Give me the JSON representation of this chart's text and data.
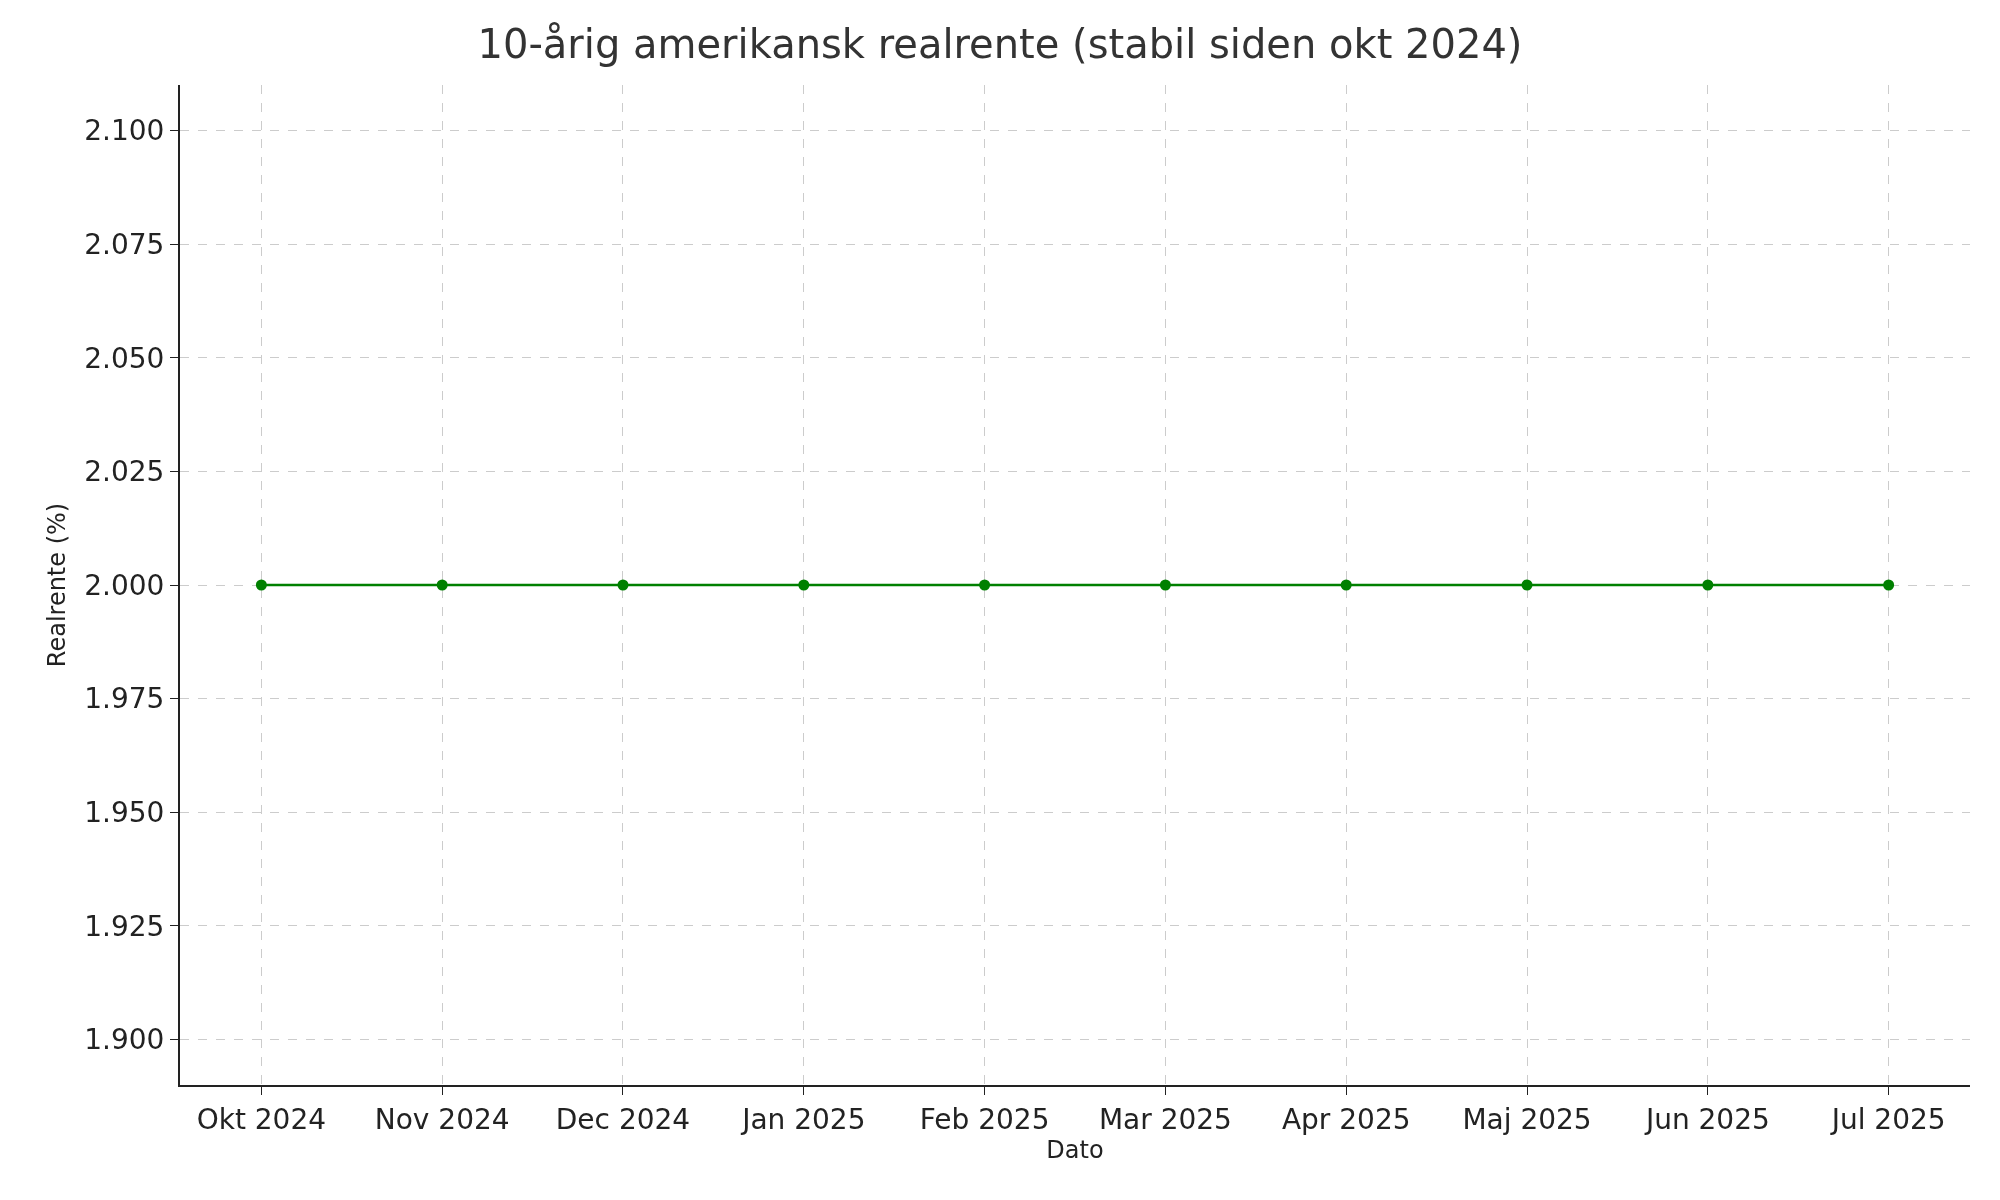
{
  "chart_data": {
    "type": "line",
    "title": "10-årig amerikansk realrente (stabil siden okt 2024)",
    "xlabel": "Dato",
    "ylabel": "Realrente (%)",
    "categories": [
      "Okt 2024",
      "Nov 2024",
      "Dec 2024",
      "Jan 2025",
      "Feb 2025",
      "Mar 2025",
      "Apr 2025",
      "Maj 2025",
      "Jun 2025",
      "Jul 2025"
    ],
    "series": [
      {
        "color": "#008000",
        "values": [
          2.0,
          2.0,
          2.0,
          2.0,
          2.0,
          2.0,
          2.0,
          2.0,
          2.0,
          2.0
        ]
      }
    ],
    "ylim": [
      1.89,
      2.11
    ],
    "yticks": [
      {
        "value": 1.9,
        "label": "1.900"
      },
      {
        "value": 1.925,
        "label": "1.925"
      },
      {
        "value": 1.95,
        "label": "1.950"
      },
      {
        "value": 1.975,
        "label": "1.975"
      },
      {
        "value": 2.0,
        "label": "2.000"
      },
      {
        "value": 2.025,
        "label": "2.025"
      },
      {
        "value": 2.05,
        "label": "2.050"
      },
      {
        "value": 2.075,
        "label": "2.075"
      },
      {
        "value": 2.1,
        "label": "2.100"
      }
    ],
    "grid": true,
    "marker": "circle",
    "line_style": "solid"
  }
}
